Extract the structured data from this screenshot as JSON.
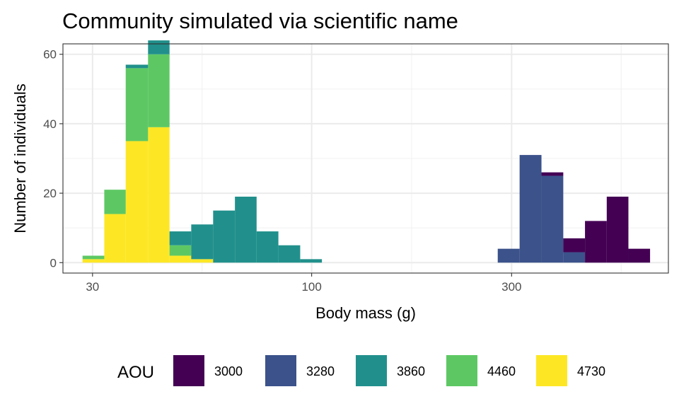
{
  "chart_data": {
    "type": "bar",
    "subtype": "stacked histogram",
    "title": "Community simulated via scientific name",
    "xlabel": "Body mass (g)",
    "ylabel": "Number of individuals",
    "x_scale": "log10",
    "xlim": [
      25.5,
      710
    ],
    "ylim": [
      -3,
      63
    ],
    "x_major_ticks": [
      30,
      100,
      300
    ],
    "x_minor_ticks": [
      54.77,
      173.21,
      547.72
    ],
    "y_major_ticks": [
      0,
      20,
      40,
      60
    ],
    "y_minor_ticks": [
      10,
      30,
      50
    ],
    "grid": true,
    "legend": {
      "title": "AOU",
      "position": "bottom"
    },
    "series": [
      {
        "name": "3000",
        "color": "#440154",
        "bins": [
          {
            "x0": 398.5,
            "x1": 449.0,
            "value": 4
          },
          {
            "x0": 449.0,
            "x1": 506.0,
            "value": 12
          },
          {
            "x0": 506.0,
            "x1": 570.0,
            "value": 19
          },
          {
            "x0": 570.0,
            "x1": 642.0,
            "value": 4
          },
          {
            "x0": 353.5,
            "x1": 398.5,
            "value": 1
          }
        ]
      },
      {
        "name": "3280",
        "color": "#3B528B",
        "bins": [
          {
            "x0": 278.0,
            "x1": 313.5,
            "value": 4
          },
          {
            "x0": 313.5,
            "x1": 353.5,
            "value": 31
          },
          {
            "x0": 353.5,
            "x1": 398.5,
            "value": 25
          },
          {
            "x0": 398.5,
            "x1": 449.0,
            "value": 3
          }
        ]
      },
      {
        "name": "3860",
        "color": "#21908C",
        "bins": [
          {
            "x0": 32.0,
            "x1": 36.0,
            "value": 0
          },
          {
            "x0": 36.0,
            "x1": 40.7,
            "value": 1
          },
          {
            "x0": 40.7,
            "x1": 45.8,
            "value": 4
          },
          {
            "x0": 45.8,
            "x1": 51.6,
            "value": 4
          },
          {
            "x0": 51.6,
            "x1": 58.2,
            "value": 10
          },
          {
            "x0": 58.2,
            "x1": 65.6,
            "value": 15
          },
          {
            "x0": 65.6,
            "x1": 73.9,
            "value": 19
          },
          {
            "x0": 73.9,
            "x1": 83.3,
            "value": 9
          },
          {
            "x0": 83.3,
            "x1": 93.9,
            "value": 5
          },
          {
            "x0": 93.9,
            "x1": 105.8,
            "value": 1
          }
        ]
      },
      {
        "name": "4460",
        "color": "#5DC863",
        "bins": [
          {
            "x0": 28.4,
            "x1": 32.0,
            "value": 1
          },
          {
            "x0": 32.0,
            "x1": 36.0,
            "value": 7
          },
          {
            "x0": 36.0,
            "x1": 40.7,
            "value": 21
          },
          {
            "x0": 40.7,
            "x1": 45.8,
            "value": 21
          },
          {
            "x0": 45.8,
            "x1": 51.6,
            "value": 3
          }
        ]
      },
      {
        "name": "4730",
        "color": "#FDE725",
        "bins": [
          {
            "x0": 28.4,
            "x1": 32.0,
            "value": 1
          },
          {
            "x0": 32.0,
            "x1": 36.0,
            "value": 14
          },
          {
            "x0": 36.0,
            "x1": 40.7,
            "value": 35
          },
          {
            "x0": 40.7,
            "x1": 45.8,
            "value": 39
          },
          {
            "x0": 45.8,
            "x1": 51.6,
            "value": 2
          },
          {
            "x0": 51.6,
            "x1": 58.2,
            "value": 1
          }
        ]
      }
    ]
  }
}
